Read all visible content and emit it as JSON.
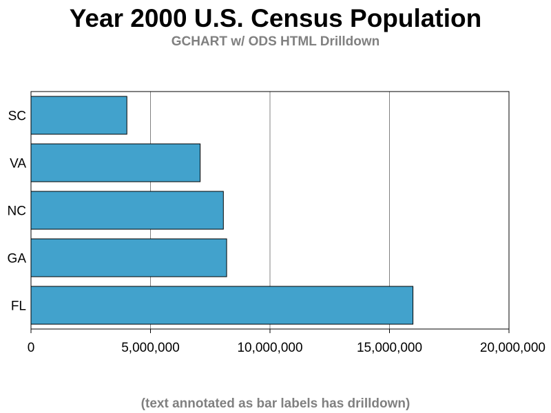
{
  "title": "Year 2000 U.S. Census Population",
  "subtitle": "GCHART w/ ODS HTML Drilldown",
  "footnote": "(text annotated as bar labels has drilldown)",
  "colors": {
    "bar_fill": "#42a2cc",
    "bar_stroke": "#000000",
    "grid": "#808080",
    "frame": "#000000",
    "subtitle": "#808080"
  },
  "chart_data": {
    "type": "bar",
    "orientation": "horizontal",
    "categories": [
      "SC",
      "VA",
      "NC",
      "GA",
      "FL"
    ],
    "values": [
      4012012,
      7078515,
      8049313,
      8186453,
      15982378
    ],
    "title": "Year 2000 U.S. Census Population",
    "xlabel": "",
    "ylabel": "",
    "xlim": [
      0,
      20000000
    ],
    "xticks": [
      0,
      5000000,
      10000000,
      15000000,
      20000000
    ],
    "xtick_labels": [
      "0",
      "5,000,000",
      "10,000,000",
      "15,000,000",
      "20,000,000"
    ],
    "grid": true,
    "legend": "none"
  }
}
